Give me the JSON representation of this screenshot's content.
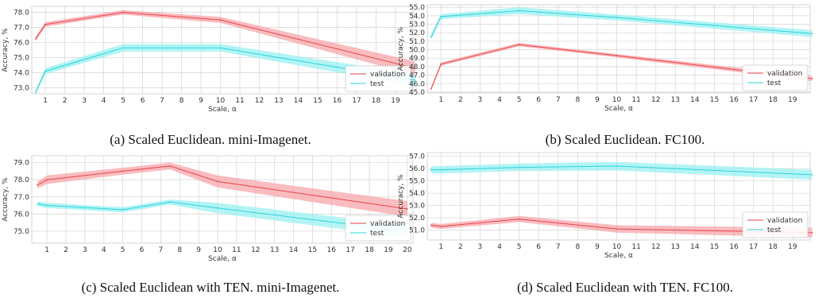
{
  "colors": {
    "validation": "#e8424a",
    "validation_band": "#f7a6aa",
    "test": "#2ad4dc",
    "test_band": "#9af0f2",
    "grid": "#d9d9d9"
  },
  "chart_data": [
    {
      "type": "line",
      "caption": "(a) Scaled Euclidean. mini-Imagenet.",
      "xlabel": "Scale, α",
      "ylabel": "Accuracy, %",
      "xlim": [
        0.3,
        19.9
      ],
      "ylim": [
        72.6,
        78.4
      ],
      "xticks": [
        1,
        2,
        3,
        4,
        5,
        6,
        7,
        8,
        9,
        10,
        11,
        12,
        13,
        14,
        15,
        16,
        17,
        18,
        19
      ],
      "yticks": [
        73.0,
        74.0,
        75.0,
        76.0,
        77.0,
        78.0
      ],
      "ytick_labels": [
        "73.0",
        "74.0",
        "75.0",
        "76.0",
        "77.0",
        "78.0"
      ],
      "legend": "lower-right",
      "grid": true,
      "series": [
        {
          "name": "validation",
          "x": [
            0.5,
            1,
            5,
            10,
            20
          ],
          "y": [
            76.25,
            77.2,
            78.0,
            77.5,
            74.3
          ],
          "band": [
            0.15,
            0.15,
            0.15,
            0.2,
            0.45
          ]
        },
        {
          "name": "test",
          "x": [
            0.5,
            1,
            5,
            10,
            20
          ],
          "y": [
            72.7,
            74.1,
            75.65,
            75.65,
            73.5
          ],
          "band": [
            0.15,
            0.2,
            0.25,
            0.25,
            0.4
          ]
        }
      ]
    },
    {
      "type": "line",
      "caption": "(b) Scaled Euclidean. FC100.",
      "xlabel": "Scale, α",
      "ylabel": "Accuracy, %",
      "xlim": [
        0.3,
        19.9
      ],
      "ylim": [
        44.9,
        55.3
      ],
      "xticks": [
        1,
        2,
        3,
        4,
        5,
        6,
        7,
        8,
        9,
        10,
        11,
        12,
        13,
        14,
        15,
        16,
        17,
        18,
        19
      ],
      "yticks": [
        45.0,
        46.0,
        47.0,
        48.0,
        49.0,
        50.0,
        51.0,
        52.0,
        53.0,
        54.0,
        55.0
      ],
      "ytick_labels": [
        "45.0",
        "46.0",
        "47.0",
        "48.0",
        "49.0",
        "50.0",
        "51.0",
        "52.0",
        "53.0",
        "54.0",
        "55.0"
      ],
      "legend": "lower-right",
      "grid": true,
      "series": [
        {
          "name": "validation",
          "x": [
            0.5,
            1,
            5,
            10,
            20
          ],
          "y": [
            45.4,
            48.3,
            50.6,
            49.3,
            46.6
          ],
          "band": [
            0.2,
            0.2,
            0.2,
            0.2,
            0.3
          ]
        },
        {
          "name": "test",
          "x": [
            0.5,
            1,
            5,
            10,
            20
          ],
          "y": [
            51.5,
            53.9,
            54.6,
            53.8,
            51.9
          ],
          "band": [
            0.3,
            0.3,
            0.4,
            0.35,
            0.4
          ]
        }
      ]
    },
    {
      "type": "line",
      "caption": "(c) Scaled Euclidean with TEN. mini-Imagenet.",
      "xlabel": "Scale, α",
      "ylabel": "Accuracy, %",
      "xlim": [
        0.2,
        20.3
      ],
      "ylim": [
        74.3,
        79.4
      ],
      "xticks": [
        1,
        2,
        3,
        4,
        5,
        6,
        7,
        8,
        9,
        10,
        11,
        12,
        13,
        14,
        15,
        16,
        17,
        18,
        19,
        20
      ],
      "yticks": [
        75.0,
        76.0,
        77.0,
        78.0,
        79.0
      ],
      "ytick_labels": [
        "75.0",
        "76.0",
        "77.0",
        "78.0",
        "79.0"
      ],
      "legend": "lower-right",
      "grid": true,
      "series": [
        {
          "name": "validation",
          "x": [
            0.5,
            1,
            5,
            7.5,
            10,
            20
          ],
          "y": [
            77.7,
            78.0,
            78.5,
            78.8,
            77.9,
            76.3
          ],
          "band": [
            0.2,
            0.25,
            0.2,
            0.2,
            0.35,
            0.45
          ]
        },
        {
          "name": "test",
          "x": [
            0.5,
            1,
            5,
            7.5,
            10,
            20
          ],
          "y": [
            76.6,
            76.5,
            76.25,
            76.7,
            76.35,
            75.0
          ],
          "band": [
            0.15,
            0.15,
            0.15,
            0.15,
            0.3,
            0.35
          ]
        }
      ]
    },
    {
      "type": "line",
      "caption": "(d) Scaled Euclidean with TEN. FC100.",
      "xlabel": "Scale, α",
      "ylabel": "Accuracy, %",
      "xlim": [
        0.3,
        19.9
      ],
      "ylim": [
        50.2,
        57.3
      ],
      "xticks": [
        1,
        2,
        3,
        4,
        5,
        6,
        7,
        8,
        9,
        10,
        11,
        12,
        13,
        14,
        15,
        16,
        17,
        18,
        19
      ],
      "yticks": [
        51.0,
        52.0,
        53.0,
        54.0,
        55.0,
        56.0,
        57.0
      ],
      "ytick_labels": [
        "51.0",
        "52.0",
        "53.0",
        "54.0",
        "55.0",
        "56.0",
        "57.0"
      ],
      "legend": "lower-right",
      "grid": true,
      "series": [
        {
          "name": "validation",
          "x": [
            0.5,
            1,
            5,
            10,
            20
          ],
          "y": [
            51.4,
            51.3,
            51.9,
            51.1,
            50.8
          ],
          "band": [
            0.2,
            0.2,
            0.25,
            0.3,
            0.4
          ]
        },
        {
          "name": "test",
          "x": [
            0.5,
            1,
            5,
            10,
            20
          ],
          "y": [
            55.9,
            55.9,
            56.1,
            56.2,
            55.5
          ],
          "band": [
            0.3,
            0.3,
            0.3,
            0.35,
            0.4
          ]
        }
      ]
    }
  ]
}
